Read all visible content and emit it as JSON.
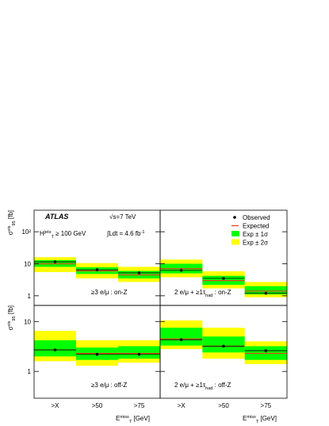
{
  "x_categories": [
    ">X",
    ">50",
    ">75"
  ],
  "legend": [
    {
      "name": "Observed",
      "color": "#000000"
    },
    {
      "name": "Expected",
      "color": "#e8401c"
    },
    {
      "name": "Exp ± 1σ",
      "color": "#00ff00"
    },
    {
      "name": "Exp ± 2σ",
      "color": "#ffff00"
    }
  ],
  "y_label": [
    {
      "text": "σ"
    },
    {
      "sup": "vis"
    },
    {
      "sub": "95"
    },
    {
      "text": " [fb]"
    }
  ],
  "x_label": [
    {
      "text": "E"
    },
    {
      "sup": "miss"
    },
    {
      "sub": "T"
    },
    {
      "text": " [GeV]"
    }
  ],
  "annotations": {
    "experiment": "ATLAS",
    "energy": "√s=7 TeV",
    "cut": [
      {
        "text": "H"
      },
      {
        "sup": "jets"
      },
      {
        "sub": "T"
      },
      {
        "text": " ≥ 100 GeV"
      }
    ],
    "lumi": [
      {
        "text": "∫Ldt = 4.6 fb"
      },
      {
        "sup": "-1"
      }
    ]
  },
  "chart_data": [
    {
      "type": "band",
      "log_scale": true,
      "ylim": [
        0.5,
        470
      ],
      "yticks": [
        1,
        10,
        {
          "value": 100,
          "label": "10²"
        }
      ],
      "label": [
        {
          "text": "≥3 e/μ : on-Z"
        }
      ],
      "observed": [
        11.5,
        6.5,
        5.2
      ],
      "expected": [
        10,
        6,
        4.5
      ],
      "sigma1_low": [
        8,
        4.8,
        3.5
      ],
      "sigma1_high": [
        13,
        7.8,
        6
      ],
      "sigma2_low": [
        5.5,
        3.5,
        2.7
      ],
      "sigma2_high": [
        16,
        10.5,
        8
      ]
    },
    {
      "type": "band",
      "log_scale": true,
      "ylim": [
        0.5,
        470
      ],
      "yticks": [
        1,
        10,
        100
      ],
      "label": [
        {
          "text": "2 e/μ + ≥1τ"
        },
        {
          "sub": "had"
        },
        {
          "text": " : on-Z"
        }
      ],
      "observed": [
        6.2,
        3.5,
        1.2
      ],
      "expected": [
        7,
        3,
        1.4
      ],
      "sigma1_low": [
        5,
        2.2,
        1.1
      ],
      "sigma1_high": [
        10,
        4.2,
        2
      ],
      "sigma2_low": [
        3.8,
        1.7,
        0.9
      ],
      "sigma2_high": [
        13.5,
        5.8,
        2.7
      ]
    },
    {
      "type": "band",
      "log_scale": true,
      "ylim": [
        0.29,
        21
      ],
      "yticks": [
        1,
        10
      ],
      "label": [
        {
          "text": "≥3 e/μ : off-Z"
        }
      ],
      "observed": [
        2.7,
        2.2,
        2.2
      ],
      "expected": [
        2.7,
        2.3,
        2.3
      ],
      "sigma1_low": [
        2,
        1.7,
        1.8
      ],
      "sigma1_high": [
        4.2,
        3,
        3.2
      ],
      "sigma2_low": [
        1.6,
        1.3,
        1.5
      ],
      "sigma2_high": [
        6.5,
        4.2,
        4.2
      ]
    },
    {
      "type": "band",
      "log_scale": true,
      "ylim": [
        0.29,
        21
      ],
      "yticks": [
        1,
        10
      ],
      "label": [
        {
          "text": "2 e/μ + ≥1τ"
        },
        {
          "sub": "had"
        },
        {
          "text": " : off-Z"
        }
      ],
      "observed": [
        4.3,
        3.2,
        2.6
      ],
      "expected": [
        4.5,
        3.2,
        2.3
      ],
      "sigma1_low": [
        3.3,
        2.4,
        1.7
      ],
      "sigma1_high": [
        7.5,
        5,
        3.2
      ],
      "sigma2_low": [
        2.8,
        1.8,
        1.4
      ],
      "sigma2_high": [
        10.5,
        7.5,
        4
      ]
    }
  ]
}
